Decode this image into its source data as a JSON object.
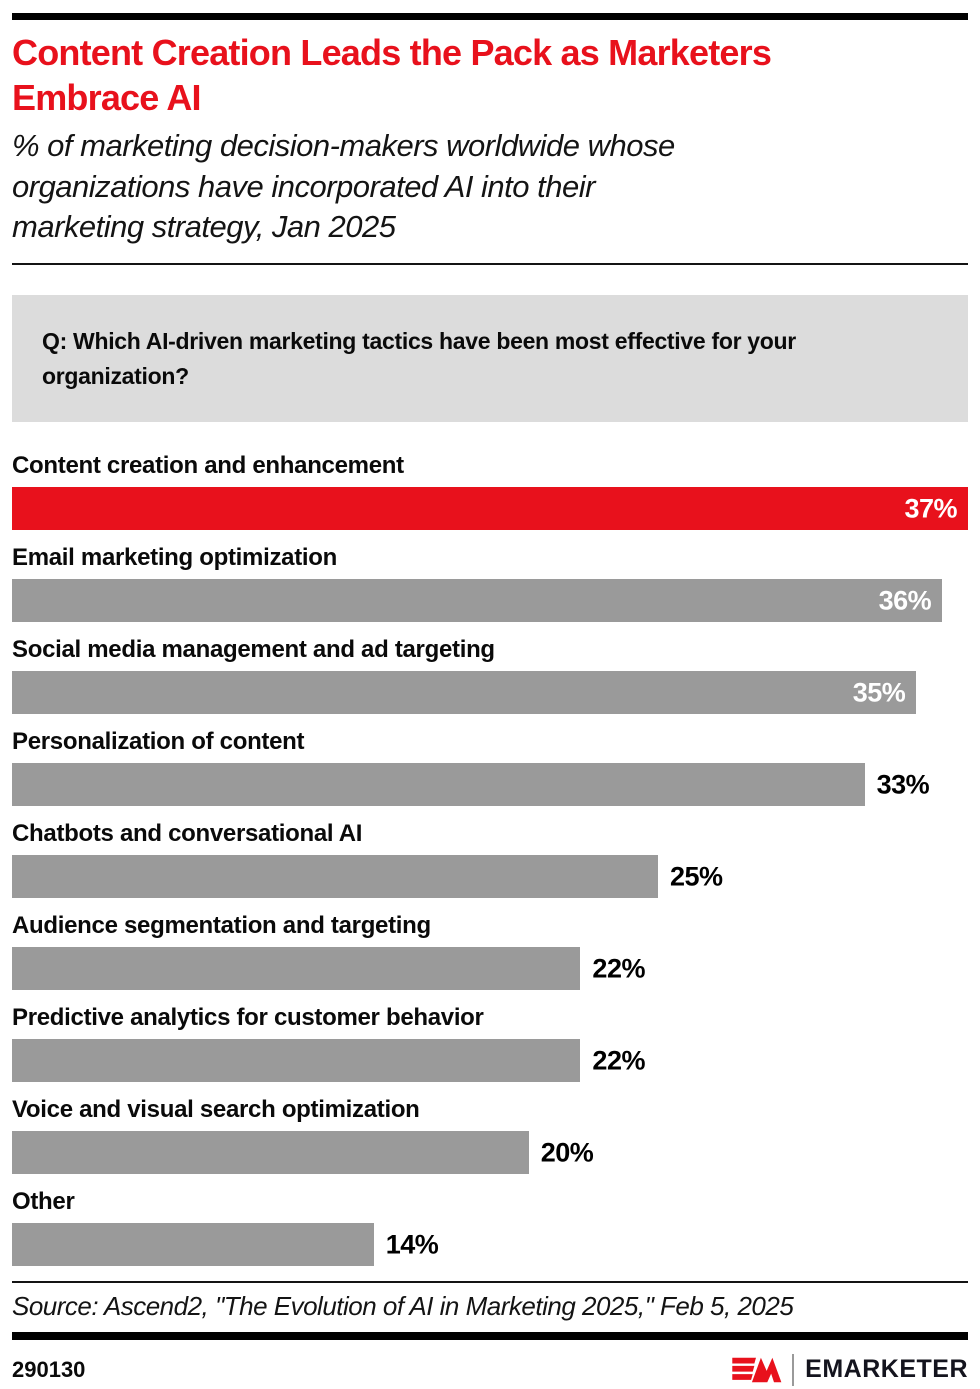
{
  "header": {
    "title": "Content Creation Leads the Pack as Marketers\nEmbrace AI",
    "subtitle": "% of marketing decision-makers worldwide whose\norganizations have incorporated AI into their\nmarketing strategy, Jan 2025"
  },
  "question": {
    "text": "Q: Which AI-driven marketing tactics have been most effective for your\norganization?"
  },
  "chart_data": {
    "type": "bar",
    "orientation": "horizontal",
    "title": "Content Creation Leads the Pack as Marketers Embrace AI",
    "subtitle": "% of marketing decision-makers worldwide whose organizations have incorporated AI into their marketing strategy, Jan 2025",
    "categories": [
      "Content creation and enhancement",
      "Email marketing optimization",
      "Social media management and ad targeting",
      "Personalization of content",
      "Chatbots and conversational AI",
      "Audience segmentation and targeting",
      "Predictive analytics for customer behavior",
      "Voice and visual search optimization",
      "Other"
    ],
    "values": [
      37,
      36,
      35,
      33,
      25,
      22,
      22,
      20,
      14
    ],
    "value_labels": [
      "37%",
      "36%",
      "35%",
      "33%",
      "25%",
      "22%",
      "22%",
      "20%",
      "14%"
    ],
    "unit": "%",
    "xlim": [
      0,
      37
    ],
    "grid": false,
    "legend": false,
    "highlight_index": 0,
    "colors": {
      "highlight_bar": "#e8111c",
      "bar": "#9a9a9a",
      "value_inside": "#ffffff",
      "value_outside": "#000000"
    }
  },
  "footer": {
    "source": "Source: Ascend2, \"The Evolution of AI in Marketing 2025,\" Feb 5, 2025",
    "chart_id": "290130",
    "brand": "EMARKETER"
  },
  "colors": {
    "accent_red": "#e8111c",
    "bar_gray": "#9a9a9a",
    "question_box_bg": "#dcdcdc",
    "rule_black": "#000000"
  }
}
